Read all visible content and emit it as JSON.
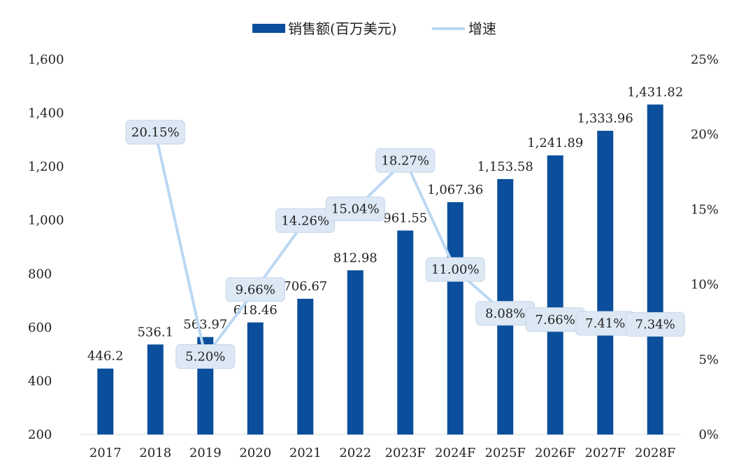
{
  "chart_data": {
    "type": "bar",
    "categories": [
      "2017",
      "2018",
      "2019",
      "2020",
      "2021",
      "2022",
      "2023F",
      "2024F",
      "2025F",
      "2026F",
      "2027F",
      "2028F"
    ],
    "series": [
      {
        "name": "销售额(百万美元)",
        "type": "bar",
        "axis": "left",
        "values": [
          446.2,
          536.1,
          563.97,
          618.46,
          706.67,
          812.98,
          961.55,
          1067.36,
          1153.58,
          1241.89,
          1333.96,
          1431.82
        ],
        "labels": [
          "446.2",
          "536.1",
          "563.97",
          "618.46",
          "706.67",
          "812.98",
          "961.55",
          "1,067.36",
          "1,153.58",
          "1,241.89",
          "1,333.96",
          "1,431.82"
        ]
      },
      {
        "name": "增速",
        "type": "line",
        "axis": "right",
        "values": [
          null,
          20.15,
          5.2,
          9.66,
          14.26,
          15.04,
          18.27,
          11.0,
          8.08,
          7.66,
          7.41,
          7.34
        ],
        "labels": [
          "",
          "20.15%",
          "5.20%",
          "9.66%",
          "14.26%",
          "15.04%",
          "18.27%",
          "11.00%",
          "8.08%",
          "7.66%",
          "7.41%",
          "7.34%"
        ]
      }
    ],
    "y_left": {
      "min": 200,
      "max": 1600,
      "ticks": [
        "1,600",
        "1,400",
        "1,200",
        "1,000",
        "800",
        "600",
        "400",
        "200"
      ],
      "tick_values": [
        1600,
        1400,
        1200,
        1000,
        800,
        600,
        400,
        200
      ]
    },
    "y_right": {
      "min": 0,
      "max": 25,
      "ticks": [
        "25%",
        "20%",
        "15%",
        "10%",
        "5%",
        "0%"
      ],
      "tick_values": [
        25,
        20,
        15,
        10,
        5,
        0
      ]
    },
    "legend": {
      "position": "top-center",
      "items": [
        "销售额(百万美元)",
        "增速"
      ]
    },
    "colors": {
      "bar": "#0B4F9C",
      "line": "#BBD8F3",
      "label_box": "#DCE8F4",
      "label_border": "#C5D6E8"
    },
    "grid": false
  }
}
